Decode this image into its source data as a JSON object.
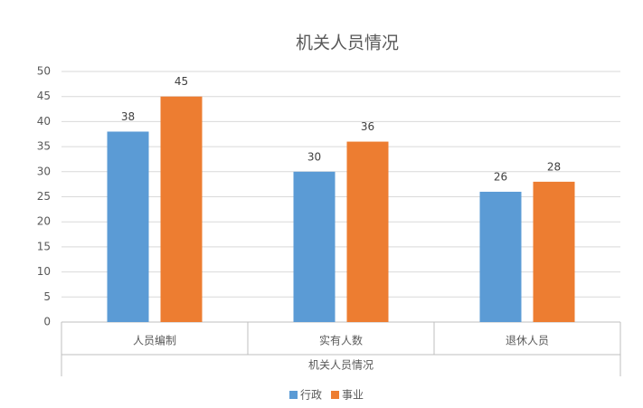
{
  "chart_data": {
    "type": "bar",
    "title": "机关人员情况",
    "x_label": "机关人员情况",
    "categories": [
      "人员编制",
      "实有人数",
      "退休人员"
    ],
    "series": [
      {
        "name": "行政",
        "color": "#5b9bd5",
        "values": [
          38,
          30,
          26
        ]
      },
      {
        "name": "事业",
        "color": "#ed7d31",
        "values": [
          45,
          36,
          28
        ]
      }
    ],
    "ylim": [
      0,
      50
    ],
    "yticks": [
      0,
      5,
      10,
      15,
      20,
      25,
      30,
      35,
      40,
      45,
      50
    ],
    "grid": true,
    "legend": "bottom"
  }
}
